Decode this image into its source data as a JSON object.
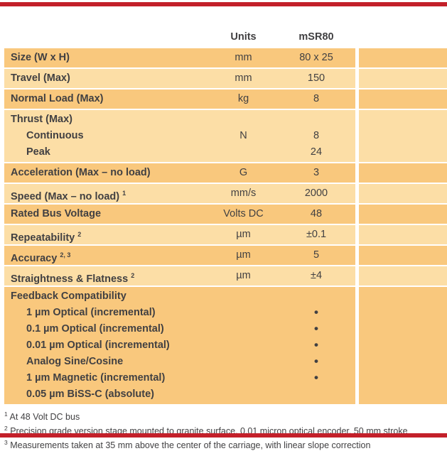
{
  "colors": {
    "accent_red": "#C3202A",
    "row_dark": "#F9C87D",
    "row_light": "#FCDEA6",
    "text": "#414042"
  },
  "table": {
    "header": {
      "units_label": "Units",
      "model_label": "mSR80"
    },
    "bullet_char": "•",
    "rows": [
      {
        "shade": "dark",
        "lines": [
          {
            "label": "Size (W x H)",
            "units": "mm",
            "value": "80 x 25"
          }
        ]
      },
      {
        "shade": "light",
        "lines": [
          {
            "label": "Travel (Max)",
            "units": "mm",
            "value": "150"
          }
        ]
      },
      {
        "shade": "dark",
        "lines": [
          {
            "label": "Normal Load (Max)",
            "units": "kg",
            "value": "8"
          }
        ]
      },
      {
        "shade": "light",
        "lines": [
          {
            "label": "Thrust (Max)"
          },
          {
            "label": "Continuous",
            "indent": true,
            "units": "N",
            "value": "8"
          },
          {
            "label": "Peak",
            "indent": true,
            "value": "24"
          }
        ]
      },
      {
        "shade": "dark",
        "lines": [
          {
            "label": "Acceleration (Max – no load)",
            "units": "G",
            "value": "3"
          }
        ]
      },
      {
        "shade": "light",
        "lines": [
          {
            "label": "Speed (Max – no load)",
            "sup": "1",
            "units": "mm/s",
            "value": "2000"
          }
        ]
      },
      {
        "shade": "dark",
        "lines": [
          {
            "label": "Rated Bus Voltage",
            "units": "Volts DC",
            "value": "48"
          }
        ]
      },
      {
        "shade": "light",
        "lines": [
          {
            "label": "Repeatability",
            "sup": "2",
            "units": "µm",
            "value": "±0.1"
          }
        ]
      },
      {
        "shade": "dark",
        "lines": [
          {
            "label": "Accuracy",
            "sup": "2, 3",
            "units": "µm",
            "value": "5"
          }
        ]
      },
      {
        "shade": "light",
        "lines": [
          {
            "label": "Straightness & Flatness",
            "sup": "2",
            "units": "µm",
            "value": "±4"
          }
        ]
      },
      {
        "shade": "dark",
        "lines": [
          {
            "label": "Feedback Compatibility"
          },
          {
            "label": "1 µm Optical (incremental)",
            "indent": true,
            "bullet": true
          },
          {
            "label": "0.1 µm Optical (incremental)",
            "indent": true,
            "bullet": true
          },
          {
            "label": "0.01 µm Optical (incremental)",
            "indent": true,
            "bullet": true
          },
          {
            "label": "Analog Sine/Cosine",
            "indent": true,
            "bullet": true
          },
          {
            "label": "1 µm Magnetic (incremental)",
            "indent": true,
            "bullet": true
          },
          {
            "label": "0.05 µm BiSS-C (absolute)",
            "indent": true
          }
        ]
      }
    ]
  },
  "footnotes": [
    {
      "sup": "1",
      "text": "At 48 Volt DC bus"
    },
    {
      "sup": "2",
      "text": "Precision grade version stage mounted to granite surface, 0.01 micron optical encoder, 50 mm stroke"
    },
    {
      "sup": "3",
      "text": "Measurements taken at 35 mm above the center of the carriage, with linear slope correction"
    }
  ]
}
